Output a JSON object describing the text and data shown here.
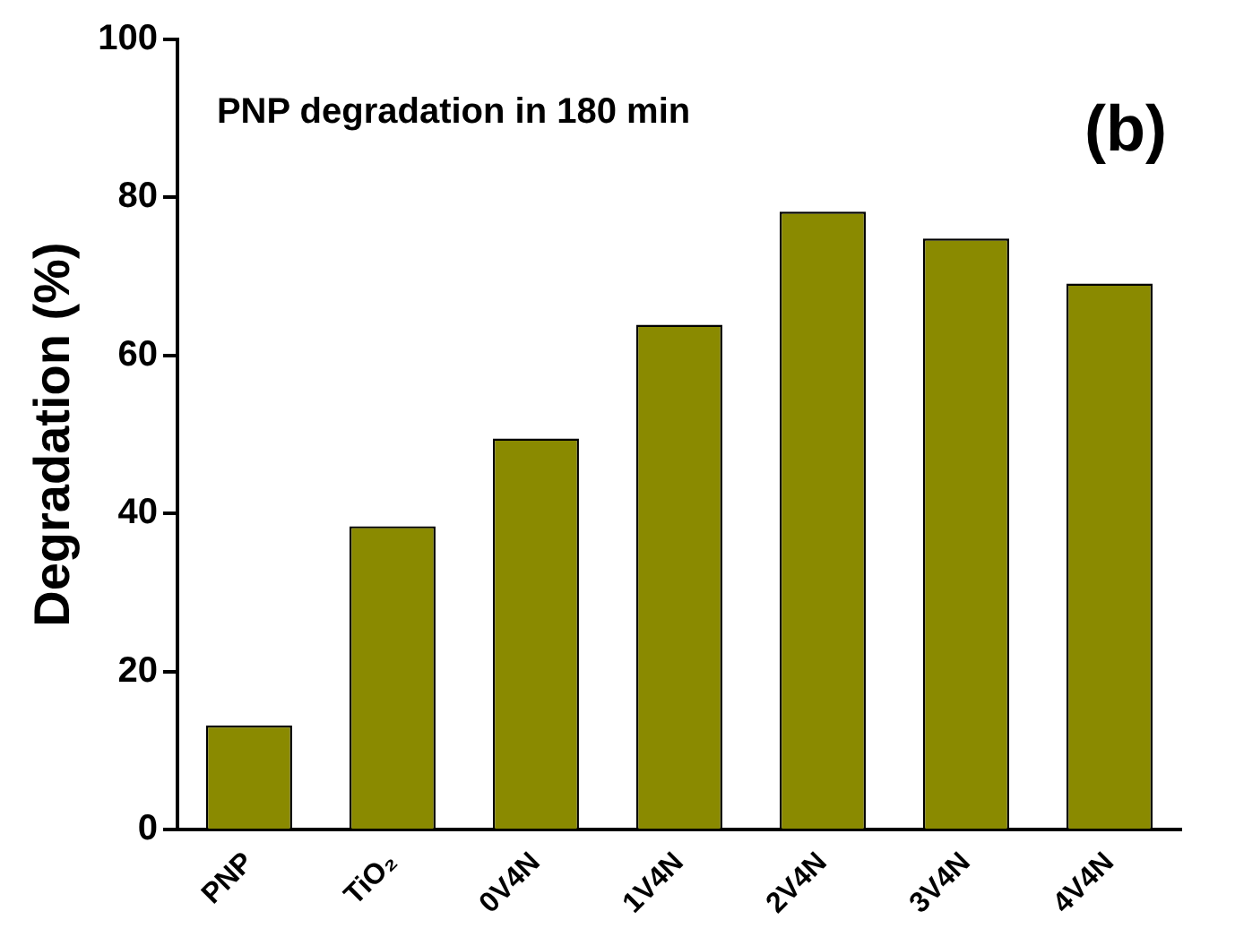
{
  "chart_data": {
    "type": "bar",
    "ylabel": "Degradation (%)",
    "categories": [
      "PNP",
      "TiO₂",
      "0V4N",
      "1V4N",
      "2V4N",
      "3V4N",
      "4V4N"
    ],
    "values": [
      13.2,
      38.4,
      49.5,
      63.9,
      78.2,
      74.8,
      69.1
    ],
    "color": "#8a8a00",
    "ylim": [
      0,
      100
    ],
    "yticks": [
      0,
      20,
      40,
      60,
      80,
      100
    ],
    "grid": false,
    "legend": false,
    "annotations": [
      "PNP degradation in 180 min",
      "(b)"
    ]
  }
}
